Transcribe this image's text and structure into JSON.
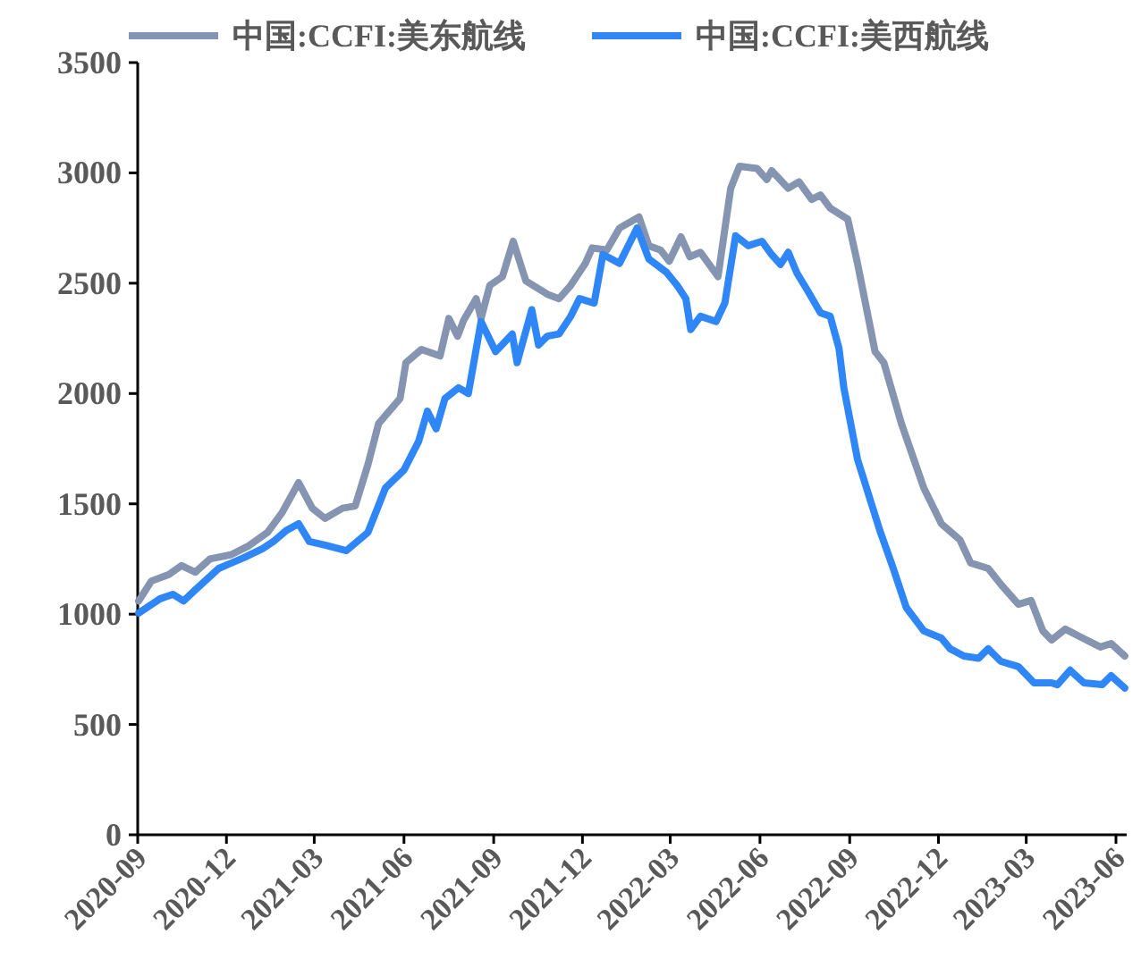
{
  "chart_data": {
    "type": "line",
    "xlim": [
      "2020-09-01",
      "2023-06-12"
    ],
    "ylim": [
      0,
      3500
    ],
    "xticks": [
      "2020-09",
      "2020-12",
      "2021-03",
      "2021-06",
      "2021-09",
      "2021-12",
      "2022-03",
      "2022-06",
      "2022-09",
      "2022-12",
      "2023-03",
      "2023-06"
    ],
    "yticks": [
      0,
      500,
      1000,
      1500,
      2000,
      2500,
      3000,
      3500
    ],
    "grid": false,
    "legend": "top",
    "line_style": "solid",
    "marker": "none",
    "series": [
      {
        "name": "中国:CCFI:美东航线",
        "color": "#8594b0",
        "x": [
          "2020-09-02",
          "2020-09-15",
          "2020-10-03",
          "2020-10-16",
          "2020-10-30",
          "2020-11-14",
          "2020-12-06",
          "2020-12-24",
          "2021-01-12",
          "2021-01-27",
          "2021-02-13",
          "2021-02-27",
          "2021-03-12",
          "2021-03-30",
          "2021-04-12",
          "2021-04-25",
          "2021-05-06",
          "2021-05-28",
          "2021-06-03",
          "2021-06-19",
          "2021-07-08",
          "2021-07-17",
          "2021-07-26",
          "2021-08-01",
          "2021-08-14",
          "2021-08-19",
          "2021-08-28",
          "2021-09-10",
          "2021-09-21",
          "2021-10-04",
          "2021-10-26",
          "2021-11-07",
          "2021-11-19",
          "2021-12-04",
          "2021-12-11",
          "2021-12-26",
          "2022-01-08",
          "2022-01-28",
          "2022-02-07",
          "2022-02-19",
          "2022-02-28",
          "2022-03-12",
          "2022-03-21",
          "2022-04-01",
          "2022-04-19",
          "2022-05-02",
          "2022-05-11",
          "2022-05-29",
          "2022-06-08",
          "2022-06-13",
          "2022-06-30",
          "2022-07-11",
          "2022-07-24",
          "2022-08-02",
          "2022-08-12",
          "2022-08-30",
          "2022-09-09",
          "2022-09-27",
          "2022-10-06",
          "2022-10-24",
          "2022-11-16",
          "2022-12-04",
          "2022-12-23",
          "2023-01-03",
          "2023-01-21",
          "2023-02-03",
          "2023-02-21",
          "2023-03-06",
          "2023-03-18",
          "2023-03-27",
          "2023-04-10",
          "2023-04-28",
          "2023-05-16",
          "2023-05-27",
          "2023-06-10"
        ],
        "values": [
          1060,
          1150,
          1180,
          1220,
          1190,
          1250,
          1270,
          1310,
          1370,
          1460,
          1596,
          1480,
          1434,
          1480,
          1490,
          1677,
          1864,
          1977,
          2140,
          2200,
          2170,
          2340,
          2260,
          2330,
          2430,
          2340,
          2490,
          2530,
          2690,
          2510,
          2450,
          2430,
          2490,
          2590,
          2660,
          2650,
          2750,
          2800,
          2670,
          2650,
          2600,
          2710,
          2620,
          2640,
          2530,
          2930,
          3030,
          3020,
          2970,
          3010,
          2930,
          2960,
          2880,
          2900,
          2840,
          2790,
          2590,
          2190,
          2140,
          1864,
          1572,
          1410,
          1337,
          1232,
          1207,
          1135,
          1045,
          1062,
          924,
          883,
          932,
          891,
          851,
          867,
          810
        ]
      },
      {
        "name": "中国:CCFI:美西航线",
        "color": "#2e86f7",
        "x": [
          "2020-09-02",
          "2020-09-24",
          "2020-10-07",
          "2020-10-18",
          "2020-10-30",
          "2020-11-23",
          "2020-12-19",
          "2021-01-07",
          "2021-01-18",
          "2021-01-31",
          "2021-02-13",
          "2021-02-24",
          "2021-03-12",
          "2021-04-03",
          "2021-04-25",
          "2021-05-13",
          "2021-06-01",
          "2021-06-16",
          "2021-06-25",
          "2021-07-04",
          "2021-07-13",
          "2021-07-27",
          "2021-08-06",
          "2021-08-19",
          "2021-09-03",
          "2021-09-20",
          "2021-09-25",
          "2021-10-10",
          "2021-10-17",
          "2021-10-26",
          "2021-11-07",
          "2021-11-19",
          "2021-11-28",
          "2021-12-13",
          "2021-12-22",
          "2022-01-08",
          "2022-01-26",
          "2022-02-07",
          "2022-02-25",
          "2022-03-08",
          "2022-03-17",
          "2022-03-22",
          "2022-04-01",
          "2022-04-17",
          "2022-04-26",
          "2022-05-07",
          "2022-05-20",
          "2022-06-03",
          "2022-06-13",
          "2022-06-22",
          "2022-06-30",
          "2022-07-09",
          "2022-07-20",
          "2022-08-02",
          "2022-08-12",
          "2022-08-21",
          "2022-08-26",
          "2022-09-09",
          "2022-10-02",
          "2022-10-15",
          "2022-10-29",
          "2022-11-16",
          "2022-12-04",
          "2022-12-13",
          "2022-12-27",
          "2023-01-11",
          "2023-01-21",
          "2023-02-03",
          "2023-02-21",
          "2023-03-09",
          "2023-03-27",
          "2023-04-02",
          "2023-04-15",
          "2023-04-29",
          "2023-05-18",
          "2023-05-27",
          "2023-06-10"
        ],
        "values": [
          1005,
          1070,
          1090,
          1060,
          1110,
          1207,
          1256,
          1297,
          1329,
          1378,
          1410,
          1329,
          1313,
          1288,
          1370,
          1572,
          1653,
          1783,
          1920,
          1840,
          1977,
          2026,
          2000,
          2326,
          2190,
          2270,
          2140,
          2380,
          2220,
          2260,
          2270,
          2350,
          2430,
          2410,
          2630,
          2590,
          2750,
          2610,
          2550,
          2490,
          2430,
          2290,
          2350,
          2326,
          2410,
          2715,
          2670,
          2690,
          2630,
          2585,
          2640,
          2545,
          2465,
          2366,
          2350,
          2205,
          2026,
          1702,
          1378,
          1216,
          1030,
          924,
          891,
          843,
          810,
          800,
          843,
          786,
          762,
          689,
          689,
          680,
          746,
          689,
          681,
          721,
          665
        ]
      }
    ]
  }
}
